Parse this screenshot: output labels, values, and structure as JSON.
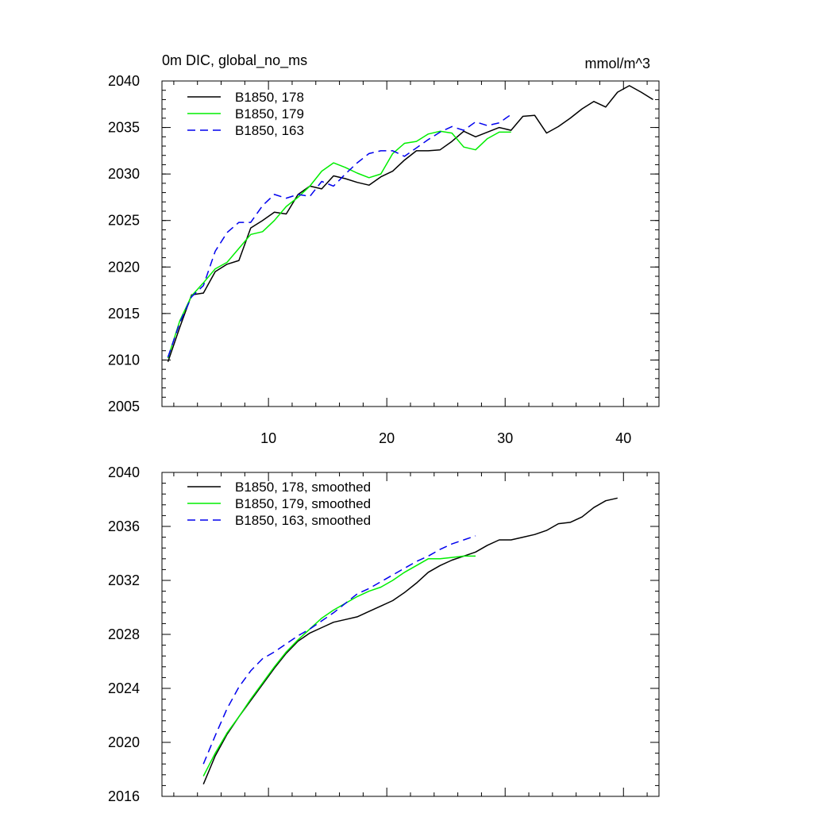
{
  "chart_data": [
    {
      "type": "line",
      "title": "0m DIC, global_no_ms",
      "units": "mmol/m^3",
      "xlim": [
        1,
        43
      ],
      "ylim": [
        2005,
        2040
      ],
      "x_ticks": [
        10,
        20,
        30,
        40
      ],
      "x_tick_labels": [
        "10",
        "20",
        "30",
        "40"
      ],
      "y_ticks": [
        2005,
        2010,
        2015,
        2020,
        2025,
        2030,
        2035,
        2040
      ],
      "y_tick_labels": [
        "2005",
        "2010",
        "2015",
        "2020",
        "2025",
        "2030",
        "2035",
        "2040"
      ],
      "legend_position": "top-left",
      "series": [
        {
          "name": "B1850, 178",
          "color": "#000000",
          "dash": "solid",
          "x": [
            1.5,
            2.5,
            3.5,
            4.5,
            5.5,
            6.5,
            7.5,
            8.5,
            9.5,
            10.5,
            11.5,
            12.5,
            13.5,
            14.5,
            15.5,
            16.5,
            17.5,
            18.5,
            19.5,
            20.5,
            21.5,
            22.5,
            23.5,
            24.5,
            25.5,
            26.5,
            27.5,
            28.5,
            29.5,
            30.5,
            31.5,
            32.5,
            33.5,
            34.5,
            35.5,
            36.5,
            37.5,
            38.5,
            39.5,
            40.5,
            41.5,
            42.5
          ],
          "values": [
            2009.8,
            2013.5,
            2017.0,
            2017.2,
            2019.5,
            2020.3,
            2020.7,
            2024.2,
            2025.0,
            2025.9,
            2025.7,
            2027.8,
            2028.7,
            2028.4,
            2029.8,
            2029.5,
            2029.1,
            2028.8,
            2029.7,
            2030.3,
            2031.5,
            2032.5,
            2032.5,
            2032.6,
            2033.5,
            2034.6,
            2034.0,
            2034.5,
            2035.0,
            2034.7,
            2036.2,
            2036.3,
            2034.4,
            2035.1,
            2036.0,
            2037.0,
            2037.8,
            2037.2,
            2038.8,
            2039.5,
            2038.8,
            2038.0
          ]
        },
        {
          "name": "B1850, 179",
          "color": "#00ee00",
          "dash": "solid",
          "x": [
            1.5,
            2.5,
            3.5,
            4.5,
            5.5,
            6.5,
            7.5,
            8.5,
            9.5,
            10.5,
            11.5,
            12.5,
            13.5,
            14.5,
            15.5,
            16.5,
            17.5,
            18.5,
            19.5,
            20.5,
            21.5,
            22.5,
            23.5,
            24.5,
            25.5,
            26.5,
            27.5,
            28.5,
            29.5,
            30.5
          ],
          "values": [
            2010.2,
            2014.2,
            2016.9,
            2018.3,
            2019.8,
            2020.5,
            2022.0,
            2023.5,
            2023.8,
            2025.0,
            2026.5,
            2027.5,
            2028.7,
            2030.3,
            2031.2,
            2030.7,
            2030.1,
            2029.6,
            2030.0,
            2032.2,
            2033.3,
            2033.5,
            2034.3,
            2034.6,
            2034.4,
            2032.9,
            2032.6,
            2033.8,
            2034.5,
            2034.5
          ]
        },
        {
          "name": "B1850, 163",
          "color": "#0000ee",
          "dash": "dashed",
          "x": [
            1.5,
            2.5,
            3.5,
            4.5,
            5.5,
            6.5,
            7.5,
            8.5,
            9.5,
            10.5,
            11.5,
            12.5,
            13.5,
            14.5,
            15.5,
            16.5,
            17.5,
            18.5,
            19.5,
            20.5,
            21.5,
            22.5,
            23.5,
            24.5,
            25.5,
            26.5,
            27.5,
            28.5,
            29.5,
            30.5
          ],
          "values": [
            2010.3,
            2014.0,
            2016.8,
            2018.0,
            2021.7,
            2023.7,
            2024.8,
            2024.8,
            2026.6,
            2027.8,
            2027.4,
            2027.8,
            2027.6,
            2029.2,
            2028.7,
            2030.0,
            2031.2,
            2032.2,
            2032.5,
            2032.5,
            2031.9,
            2032.8,
            2033.7,
            2034.5,
            2035.1,
            2034.7,
            2035.6,
            2035.2,
            2035.5,
            2036.4
          ]
        }
      ]
    },
    {
      "type": "line",
      "xlim": [
        1,
        43
      ],
      "ylim": [
        2016,
        2040
      ],
      "x_ticks": [
        10,
        20,
        30,
        40
      ],
      "x_tick_labels": [
        "",
        "",
        "",
        ""
      ],
      "y_ticks": [
        2016,
        2020,
        2024,
        2028,
        2032,
        2036,
        2040
      ],
      "y_tick_labels": [
        "2016",
        "2020",
        "2024",
        "2028",
        "2032",
        "2036",
        "2040"
      ],
      "legend_position": "top-left",
      "series": [
        {
          "name": "B1850, 178, smoothed",
          "color": "#000000",
          "dash": "solid",
          "x": [
            4.5,
            5.5,
            6.5,
            7.5,
            8.5,
            9.5,
            10.5,
            11.5,
            12.5,
            13.5,
            14.5,
            15.5,
            16.5,
            17.5,
            18.5,
            19.5,
            20.5,
            21.5,
            22.5,
            23.5,
            24.5,
            25.5,
            26.5,
            27.5,
            28.5,
            29.5,
            30.5,
            31.5,
            32.5,
            33.5,
            34.5,
            35.5,
            36.5,
            37.5,
            38.5,
            39.5
          ],
          "values": [
            2016.9,
            2019.0,
            2020.6,
            2021.9,
            2023.1,
            2024.3,
            2025.5,
            2026.6,
            2027.5,
            2028.1,
            2028.5,
            2028.9,
            2029.1,
            2029.3,
            2029.7,
            2030.1,
            2030.5,
            2031.1,
            2031.8,
            2032.6,
            2033.1,
            2033.5,
            2033.8,
            2034.1,
            2034.6,
            2035.0,
            2035.0,
            2035.2,
            2035.4,
            2035.7,
            2036.2,
            2036.3,
            2036.7,
            2037.4,
            2037.9,
            2038.1
          ]
        },
        {
          "name": "B1850, 179, smoothed",
          "color": "#00ee00",
          "dash": "solid",
          "x": [
            4.5,
            5.5,
            6.5,
            7.5,
            8.5,
            9.5,
            10.5,
            11.5,
            12.5,
            13.5,
            14.5,
            15.5,
            16.5,
            17.5,
            18.5,
            19.5,
            20.5,
            21.5,
            22.5,
            23.5,
            24.5,
            25.5,
            26.5,
            27.5
          ],
          "values": [
            2017.5,
            2019.2,
            2020.7,
            2021.9,
            2023.2,
            2024.4,
            2025.6,
            2026.7,
            2027.6,
            2028.4,
            2029.2,
            2029.8,
            2030.3,
            2030.8,
            2031.2,
            2031.5,
            2032.0,
            2032.6,
            2033.1,
            2033.6,
            2033.6,
            2033.7,
            2033.8,
            2033.8
          ]
        },
        {
          "name": "B1850, 163, smoothed",
          "color": "#0000ee",
          "dash": "dashed",
          "x": [
            4.5,
            5.5,
            6.5,
            7.5,
            8.5,
            9.5,
            10.5,
            11.5,
            12.5,
            13.5,
            14.5,
            15.5,
            16.5,
            17.5,
            18.5,
            19.5,
            20.5,
            21.5,
            22.5,
            23.5,
            24.5,
            25.5,
            26.5,
            27.5
          ],
          "values": [
            2018.4,
            2020.5,
            2022.5,
            2024.1,
            2025.3,
            2026.2,
            2026.7,
            2027.3,
            2027.9,
            2028.4,
            2029.0,
            2029.6,
            2030.3,
            2031.0,
            2031.4,
            2031.9,
            2032.4,
            2032.9,
            2033.4,
            2033.8,
            2034.3,
            2034.7,
            2035.0,
            2035.3
          ]
        }
      ]
    }
  ]
}
